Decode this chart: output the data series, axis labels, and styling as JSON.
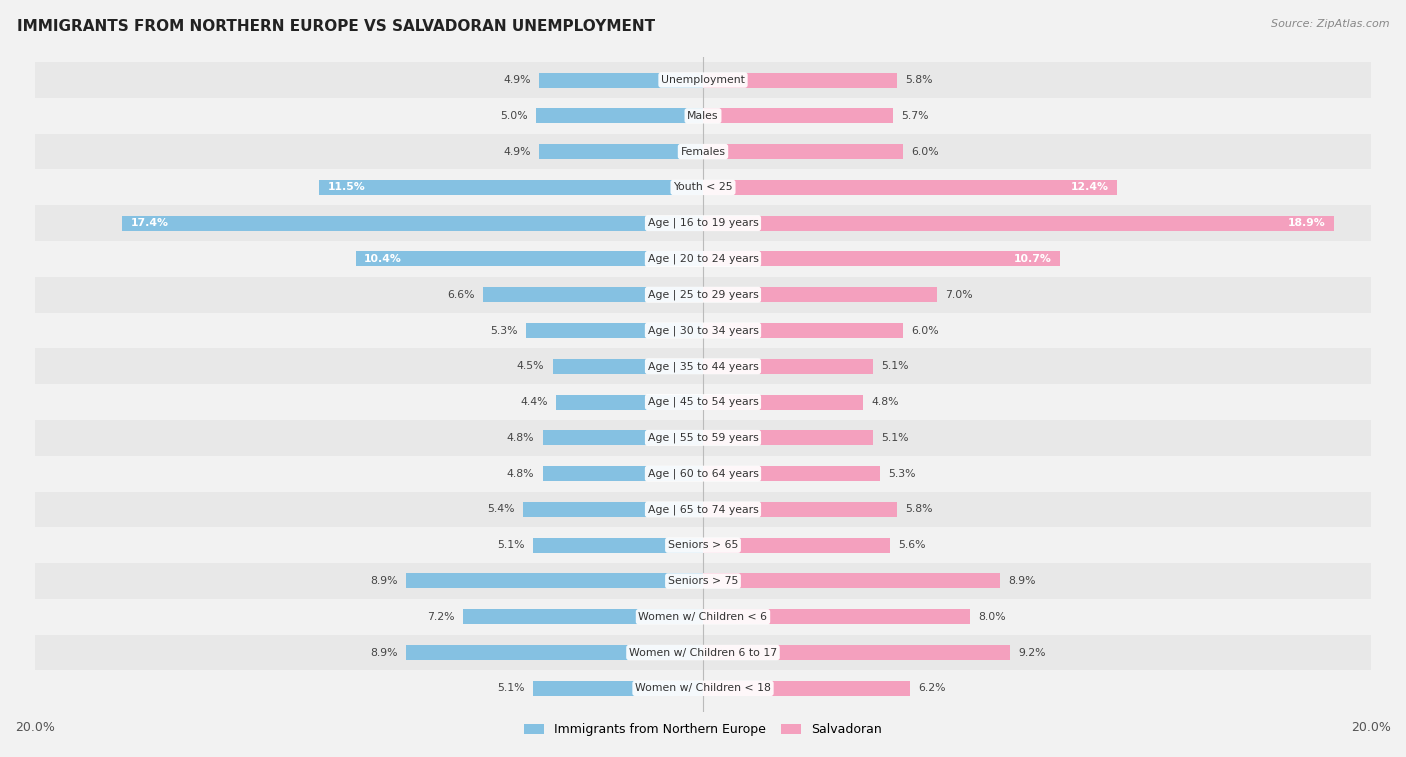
{
  "title": "IMMIGRANTS FROM NORTHERN EUROPE VS SALVADORAN UNEMPLOYMENT",
  "source": "Source: ZipAtlas.com",
  "categories": [
    "Unemployment",
    "Males",
    "Females",
    "Youth < 25",
    "Age | 16 to 19 years",
    "Age | 20 to 24 years",
    "Age | 25 to 29 years",
    "Age | 30 to 34 years",
    "Age | 35 to 44 years",
    "Age | 45 to 54 years",
    "Age | 55 to 59 years",
    "Age | 60 to 64 years",
    "Age | 65 to 74 years",
    "Seniors > 65",
    "Seniors > 75",
    "Women w/ Children < 6",
    "Women w/ Children 6 to 17",
    "Women w/ Children < 18"
  ],
  "left_values": [
    4.9,
    5.0,
    4.9,
    11.5,
    17.4,
    10.4,
    6.6,
    5.3,
    4.5,
    4.4,
    4.8,
    4.8,
    5.4,
    5.1,
    8.9,
    7.2,
    8.9,
    5.1
  ],
  "right_values": [
    5.8,
    5.7,
    6.0,
    12.4,
    18.9,
    10.7,
    7.0,
    6.0,
    5.1,
    4.8,
    5.1,
    5.3,
    5.8,
    5.6,
    8.9,
    8.0,
    9.2,
    6.2
  ],
  "left_color": "#85C1E2",
  "right_color": "#F4A0BE",
  "left_label": "Immigrants from Northern Europe",
  "right_label": "Salvadoran",
  "bg_odd": "#f2f2f2",
  "bg_even": "#e8e8e8",
  "max_value": 20.0,
  "fig_bg": "#f2f2f2"
}
